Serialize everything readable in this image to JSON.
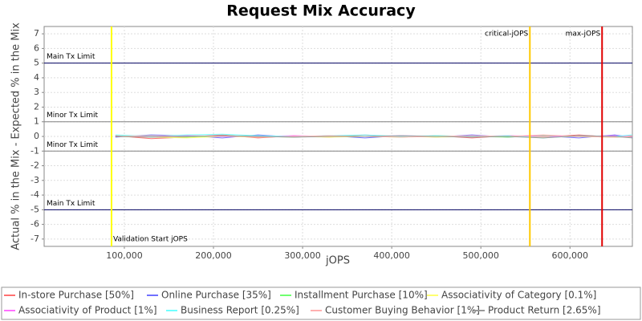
{
  "chart_data": {
    "type": "line",
    "title": "Request Mix Accuracy",
    "x_label": "jOPS",
    "y_label": "Actual % in the Mix - Expected % in the Mix",
    "xlim": [
      10000,
      670000
    ],
    "ylim": [
      -7.5,
      7.5
    ],
    "xticks": [
      {
        "value": 100000,
        "label": "100,000"
      },
      {
        "value": 200000,
        "label": "200,000"
      },
      {
        "value": 300000,
        "label": "300,000"
      },
      {
        "value": 400000,
        "label": "400,000"
      },
      {
        "value": 500000,
        "label": "500,000"
      },
      {
        "value": 600000,
        "label": "600,000"
      }
    ],
    "yticks": [
      -7,
      -6,
      -5,
      -4,
      -3,
      -2,
      -1,
      0,
      1,
      2,
      3,
      4,
      5,
      6,
      7
    ],
    "grid": true,
    "x": [
      90000,
      130000,
      170000,
      210000,
      250000,
      290000,
      330000,
      370000,
      410000,
      450000,
      490000,
      530000,
      570000,
      610000,
      650000,
      670000
    ],
    "series": [
      {
        "name": "In-store Purchase [50%]",
        "color": "#ff7070",
        "values": [
          0.05,
          -0.15,
          -0.05,
          0.1,
          -0.1,
          0.05,
          -0.05,
          0.1,
          -0.05,
          0.05,
          -0.1,
          0.05,
          -0.05,
          0.1,
          -0.05,
          0.05
        ]
      },
      {
        "name": "Online Purchase [35%]",
        "color": "#7070ff",
        "values": [
          -0.05,
          0.1,
          0.05,
          -0.1,
          0.1,
          -0.05,
          0.05,
          -0.1,
          0.05,
          -0.05,
          0.1,
          -0.05,
          0.05,
          -0.1,
          0.1,
          -0.05
        ]
      },
      {
        "name": "Installment Purchase [10%]",
        "color": "#70ff70",
        "values": [
          0.0,
          0.05,
          -0.05,
          0.05,
          0.0,
          -0.05,
          0.05,
          0.0,
          -0.05,
          0.05,
          0.0,
          -0.05,
          0.05,
          0.0,
          -0.05,
          0.0
        ]
      },
      {
        "name": "Associativity of Category [0.1%]",
        "color": "#ffff70",
        "values": [
          0.0,
          -0.05,
          -0.1,
          0.0,
          -0.05,
          0.0,
          -0.05,
          0.0,
          0.0,
          -0.05,
          0.0,
          0.0,
          -0.05,
          0.0,
          -0.05,
          0.0
        ]
      },
      {
        "name": "Associativity of Product [1%]",
        "color": "#ff70ff",
        "values": [
          0.0,
          0.0,
          0.05,
          0.0,
          0.0,
          0.05,
          0.0,
          0.0,
          0.05,
          0.0,
          0.0,
          0.05,
          0.0,
          0.0,
          0.05,
          0.0
        ]
      },
      {
        "name": "Business Report [0.25%]",
        "color": "#70ffff",
        "values": [
          0.1,
          0.0,
          0.1,
          0.15,
          0.05,
          0.0,
          0.05,
          0.1,
          0.0,
          0.05,
          0.0,
          0.05,
          -0.1,
          0.05,
          0.0,
          0.1
        ]
      },
      {
        "name": "Customer Buying Behavior [1%]",
        "color": "#ffb0b0",
        "values": [
          0.0,
          0.05,
          0.0,
          0.05,
          -0.05,
          0.0,
          0.05,
          0.0,
          -0.05,
          0.0,
          0.05,
          0.0,
          0.1,
          0.0,
          -0.05,
          0.0
        ]
      },
      {
        "name": "Product Return [2.65%]",
        "color": "#999999",
        "values": [
          0.0,
          -0.05,
          0.0,
          0.05,
          0.0,
          -0.05,
          0.0,
          0.0,
          0.05,
          0.0,
          -0.05,
          0.0,
          -0.1,
          0.05,
          0.0,
          -0.1
        ]
      }
    ],
    "markers_x": [
      {
        "value": 85600,
        "label": "Validation Start jOPS",
        "color": "#ffff00"
      },
      {
        "value": 555000,
        "label": "critical-jOPS",
        "color": "#ffc800"
      },
      {
        "value": 636000,
        "label": "max-jOPS",
        "color": "#e00000"
      }
    ],
    "markers_y": [
      {
        "value": 5,
        "label": "Main Tx Limit",
        "color": "#000060"
      },
      {
        "value": 1,
        "label": "Minor Tx Limit",
        "color": "#808080"
      },
      {
        "value": -1,
        "label": "Minor Tx Limit",
        "color": "#808080"
      },
      {
        "value": -5,
        "label": "Main Tx Limit",
        "color": "#000060"
      }
    ]
  }
}
